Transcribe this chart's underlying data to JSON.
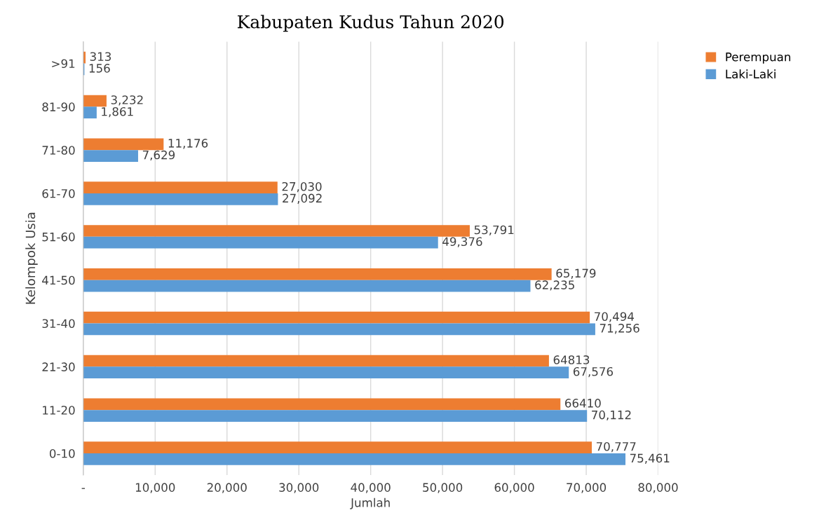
{
  "chart_data": {
    "type": "bar",
    "orientation": "horizontal",
    "title": "Kabupaten Kudus Tahun 2020",
    "xlabel": "Jumlah",
    "ylabel": "Kelompok Usia",
    "categories": [
      ">91",
      "81-90",
      "71-80",
      "61-70",
      "51-60",
      "41-50",
      "31-40",
      "21-30",
      "11-20",
      "0-10"
    ],
    "series": [
      {
        "name": "Perempuan",
        "color": "#ed7d31",
        "values": [
          313,
          3232,
          11176,
          27030,
          53791,
          65179,
          70494,
          64813,
          66410,
          70777
        ],
        "value_labels": [
          "313",
          "3,232",
          "11,176",
          "27,030",
          "53,791",
          "65,179",
          "70,494",
          "64813",
          "66410",
          "70,777"
        ]
      },
      {
        "name": "Laki-Laki",
        "color": "#5b9bd5",
        "values": [
          156,
          1861,
          7629,
          27092,
          49376,
          62235,
          71256,
          67576,
          70112,
          75461
        ],
        "value_labels": [
          "156",
          "1,861",
          "7,629",
          "27,092",
          "49,376",
          "62,235",
          "71,256",
          "67,576",
          "70,112",
          "75,461"
        ]
      }
    ],
    "xlim": [
      0,
      80000
    ],
    "xticks": [
      {
        "value": 0,
        "label": "-"
      },
      {
        "value": 10000,
        "label": "10,000"
      },
      {
        "value": 20000,
        "label": "20,000"
      },
      {
        "value": 30000,
        "label": "30,000"
      },
      {
        "value": 40000,
        "label": "40,000"
      },
      {
        "value": 50000,
        "label": "50,000"
      },
      {
        "value": 60000,
        "label": "60,000"
      },
      {
        "value": 70000,
        "label": "70,000"
      },
      {
        "value": 80000,
        "label": "80,000"
      }
    ],
    "grid": "x",
    "legend": "top right"
  }
}
